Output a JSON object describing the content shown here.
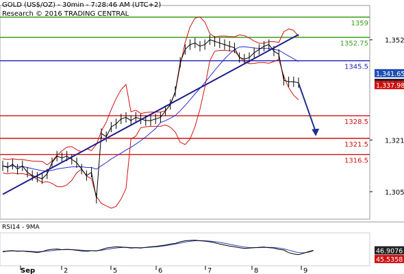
{
  "header": {
    "title": "GOLD (US$/OZ) - 30min - 7:28:46 AM (UTC+2)",
    "subtitle": "Research © 2016 TRADING CENTRAL"
  },
  "rsi_title": "RSI14 - 9MA",
  "colors": {
    "green": "#3a9a1a",
    "blue": "#1f1fb4",
    "red": "#d01010",
    "price": "#000000",
    "bollinger": "#d01010",
    "ma": "#2b2bd0",
    "trend": "#1c1c8c",
    "arrow": "#1c2f8c",
    "rsi": "#000000",
    "rsi_ma": "#3040b0",
    "last_price": "#222222",
    "blue_tag": "#1f4fb4"
  },
  "chart_data": {
    "type": "line",
    "title": "GOLD (US$/OZ) - 30min",
    "x_tick_labels": [
      "Sep",
      "2",
      "5",
      "6",
      "7",
      "8",
      "9"
    ],
    "y_tick_labels": [
      "1,352",
      "1,321",
      "1,305"
    ],
    "y_ticks": [
      1352,
      1321,
      1305
    ],
    "ylim": [
      1296.5,
      1362.6
    ],
    "levels": [
      {
        "label": "1359",
        "value": 1359,
        "color": "green"
      },
      {
        "label": "1352.75",
        "value": 1352.75,
        "color": "green"
      },
      {
        "label": "1345.5",
        "value": 1345.5,
        "color": "blue"
      },
      {
        "label": "1328.5",
        "value": 1328.5,
        "color": "red"
      },
      {
        "label": "1321.5",
        "value": 1321.5,
        "color": "red"
      },
      {
        "label": "1316.5",
        "value": 1316.5,
        "color": "red"
      }
    ],
    "price_tags": [
      {
        "label": "1,341.65",
        "value": 1341.65,
        "style": "blue"
      },
      {
        "label": "1,338.66",
        "value": 1338.66,
        "style": "dark"
      },
      {
        "label": "1,337.98",
        "value": 1337.98,
        "style": "red"
      }
    ],
    "price_series": [
      1313,
      1312.5,
      1313.5,
      1312,
      1313,
      1311,
      1310,
      1309.5,
      1309,
      1310.5,
      1314,
      1316,
      1315.5,
      1316,
      1315,
      1314,
      1312,
      1310,
      1311,
      1303,
      1323,
      1322,
      1325,
      1326,
      1327.5,
      1328,
      1327,
      1328,
      1327.5,
      1327,
      1327,
      1327.5,
      1328,
      1330,
      1332,
      1336,
      1345,
      1349,
      1350.5,
      1351,
      1350,
      1350.5,
      1352,
      1351.5,
      1351,
      1350.5,
      1350,
      1349.5,
      1346.5,
      1346,
      1346.5,
      1348,
      1349,
      1350,
      1350.5,
      1348.5,
      1347.5,
      1339.5,
      1339,
      1339,
      1338.7
    ],
    "trend_line": {
      "start": [
        0,
        1304.2
      ],
      "end": [
        60,
        1353.6
      ]
    },
    "forecast_arrow": {
      "from": [
        60,
        1338.6
      ],
      "to": [
        63.5,
        1322.2
      ]
    },
    "rsi": {
      "tags": [
        {
          "label": "46.9076",
          "value": 46.9076,
          "style": "dark"
        },
        {
          "label": "45.5358",
          "value": 45.5358,
          "style": "red"
        }
      ],
      "series": [
        42,
        45,
        46,
        44,
        45,
        43,
        42,
        40,
        43,
        48,
        50,
        51,
        49,
        50,
        49,
        47,
        45,
        44,
        46,
        45,
        49,
        54,
        56,
        58,
        57,
        56,
        54,
        55,
        54,
        56,
        58,
        59,
        61,
        63,
        66,
        68,
        73,
        76,
        77,
        78,
        76,
        75,
        73,
        70,
        66,
        63,
        60,
        58,
        55,
        53,
        54,
        55,
        56,
        57,
        55,
        54,
        50,
        48,
        40,
        36,
        34,
        38,
        43,
        46.9
      ],
      "ma_series": [
        44,
        44.5,
        45,
        45,
        44.8,
        44.2,
        43.6,
        43,
        43.5,
        44.5,
        46,
        48,
        49,
        49.5,
        49.2,
        48.5,
        47.5,
        46.5,
        46,
        45.8,
        47,
        49.5,
        52,
        54,
        55.5,
        56,
        55.5,
        55,
        55,
        55.5,
        56.5,
        57.5,
        59,
        61,
        63.5,
        66,
        69,
        72,
        74.5,
        76,
        76.5,
        76,
        75,
        73.5,
        71,
        68.5,
        65.5,
        62.5,
        59.5,
        57,
        55.5,
        55,
        55.2,
        55.8,
        56,
        55.5,
        54,
        51.5,
        47.5,
        43.5,
        40,
        39.5,
        41,
        45.5
      ]
    }
  }
}
